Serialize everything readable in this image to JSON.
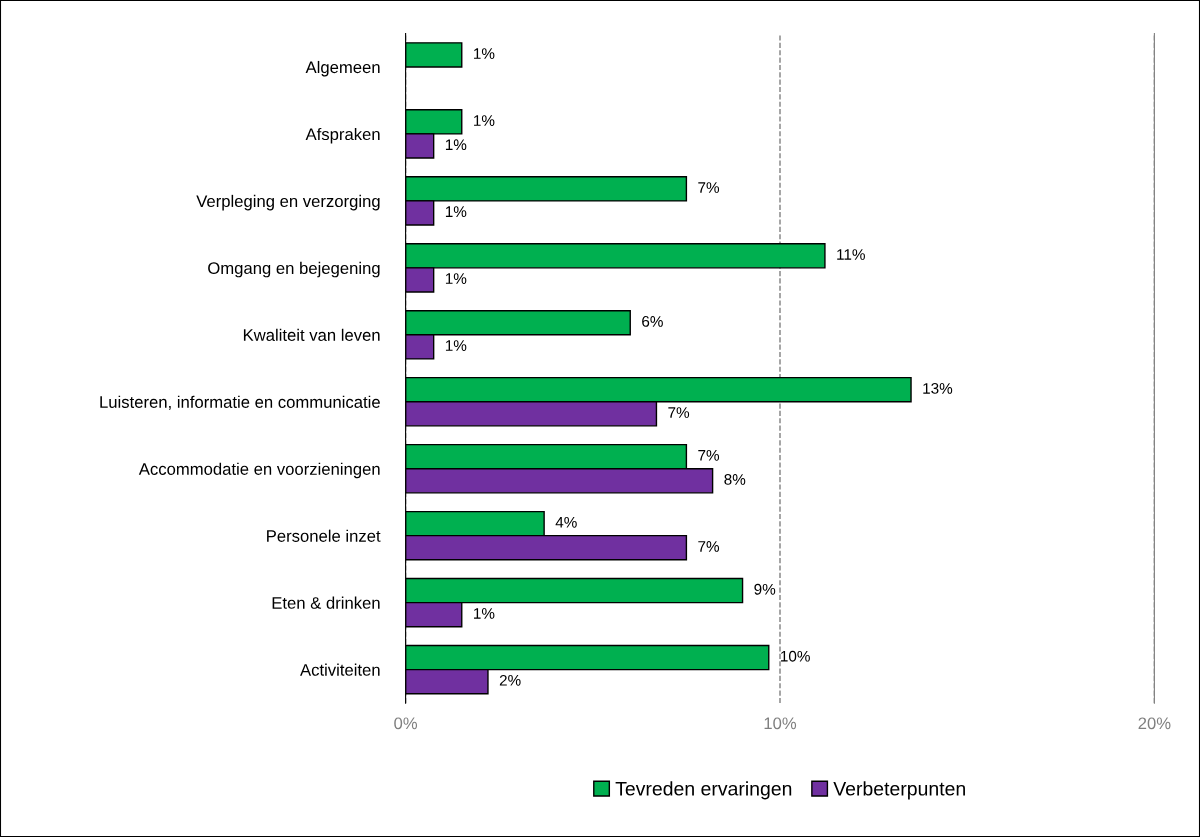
{
  "chart_data": {
    "type": "bar",
    "orientation": "horizontal",
    "categories": [
      "Algemeen",
      "Afspraken",
      "Verpleging en verzorging",
      "Omgang en bejegening",
      "Kwaliteit van leven",
      "Luisteren, informatie en communicatie",
      "Accommodatie en voorzieningen",
      "Personele inzet",
      "Eten & drinken",
      "Activiteiten"
    ],
    "series": [
      {
        "name": "Tevreden ervaringen",
        "color": "#00b050",
        "values": [
          1.5,
          1.5,
          7.5,
          11.2,
          6.0,
          13.5,
          7.5,
          3.7,
          9.0,
          9.7
        ],
        "value_labels": [
          "1%",
          "1%",
          "7%",
          "11%",
          "6%",
          "13%",
          "7%",
          "4%",
          "9%",
          "10%"
        ]
      },
      {
        "name": "Verbeterpunten",
        "color": "#7030a0",
        "values": [
          null,
          0.75,
          0.75,
          0.75,
          0.75,
          6.7,
          8.2,
          7.5,
          1.5,
          2.2
        ],
        "value_labels": [
          null,
          "1%",
          "1%",
          "1%",
          "1%",
          "7%",
          "8%",
          "7%",
          "1%",
          "2%"
        ]
      }
    ],
    "xlim": [
      0,
      20
    ],
    "xticks": [
      {
        "value": 0,
        "label": "0%"
      },
      {
        "value": 10,
        "label": "10%"
      },
      {
        "value": 20,
        "label": "20%"
      }
    ],
    "grid": "x",
    "line_style": "dashed",
    "legend": "bottom"
  }
}
